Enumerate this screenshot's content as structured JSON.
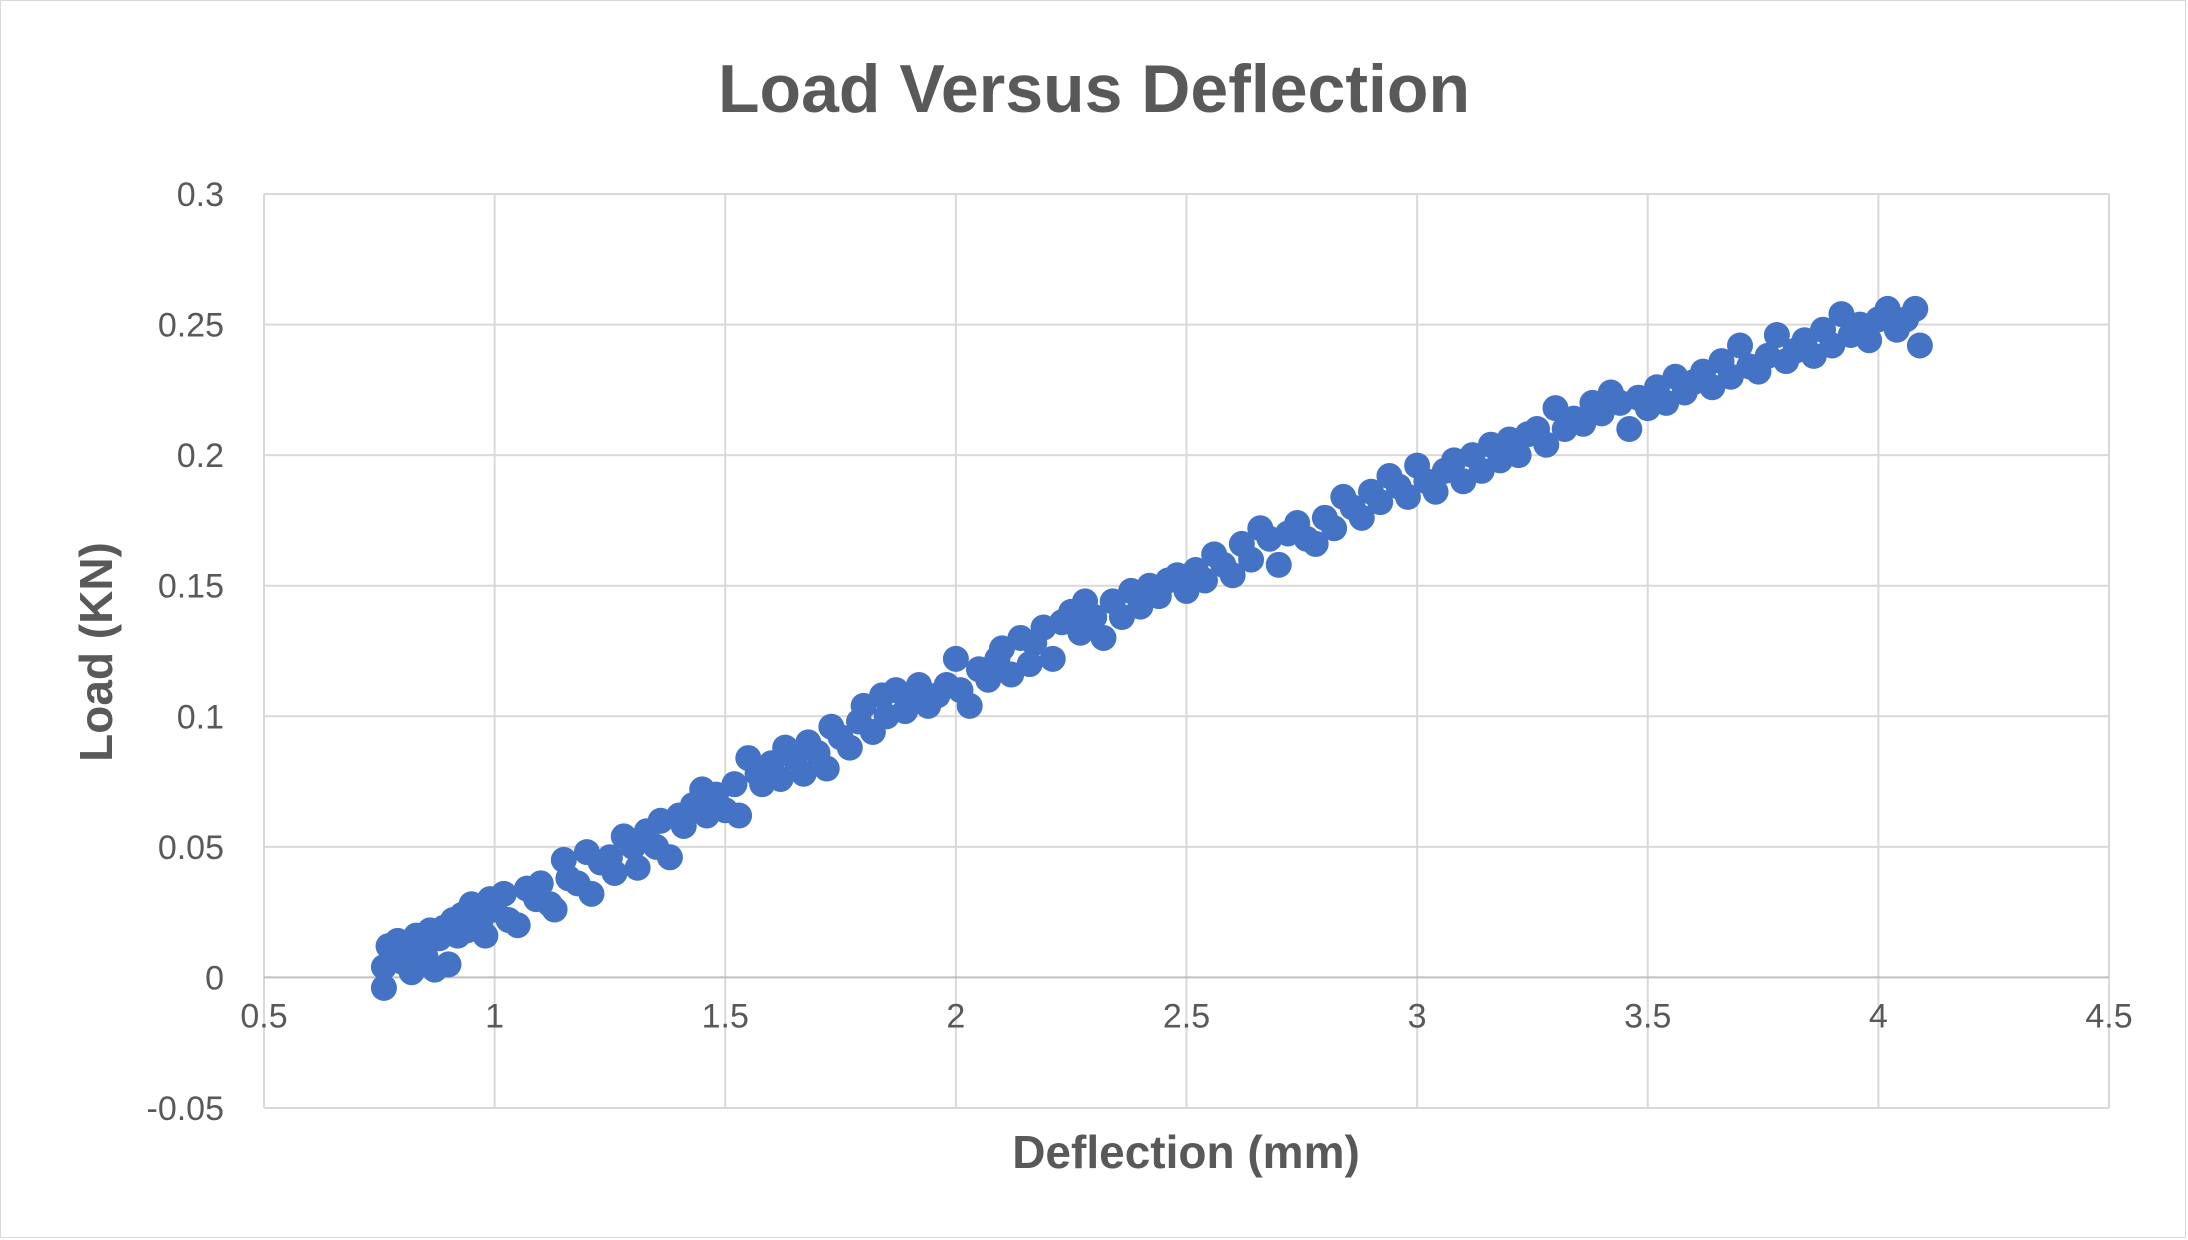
{
  "chart_data": {
    "type": "scatter",
    "title": "Load Versus Deflection",
    "xlabel": "Deflection (mm)",
    "ylabel": "Load (KN)",
    "xlim": [
      0.5,
      4.5
    ],
    "ylim": [
      -0.05,
      0.3
    ],
    "xticks": [
      0.5,
      1,
      1.5,
      2,
      2.5,
      3,
      3.5,
      4,
      4.5
    ],
    "yticks": [
      -0.05,
      0,
      0.05,
      0.1,
      0.15,
      0.2,
      0.25,
      0.3
    ],
    "xtick_labels": [
      "0.5",
      "1",
      "1.5",
      "2",
      "2.5",
      "3",
      "3.5",
      "4",
      "4.5"
    ],
    "ytick_labels": [
      "-0.05",
      "0",
      "0.05",
      "0.1",
      "0.15",
      "0.2",
      "0.25",
      "0.3"
    ],
    "grid": true,
    "legend": "none",
    "marker_color": "#4472c4",
    "series": [
      {
        "points": [
          [
            0.76,
            -0.004
          ],
          [
            0.76,
            0.004
          ],
          [
            0.77,
            0.012
          ],
          [
            0.78,
            0.008
          ],
          [
            0.79,
            0.014
          ],
          [
            0.8,
            0.006
          ],
          [
            0.81,
            0.01
          ],
          [
            0.82,
            0.002
          ],
          [
            0.83,
            0.016
          ],
          [
            0.84,
            0.012
          ],
          [
            0.85,
            0.008
          ],
          [
            0.86,
            0.018
          ],
          [
            0.87,
            0.003
          ],
          [
            0.88,
            0.015
          ],
          [
            0.89,
            0.019
          ],
          [
            0.9,
            0.005
          ],
          [
            0.91,
            0.022
          ],
          [
            0.92,
            0.016
          ],
          [
            0.93,
            0.024
          ],
          [
            0.94,
            0.018
          ],
          [
            0.95,
            0.028
          ],
          [
            0.96,
            0.02
          ],
          [
            0.97,
            0.022
          ],
          [
            0.98,
            0.016
          ],
          [
            0.99,
            0.03
          ],
          [
            1.0,
            0.026
          ],
          [
            1.02,
            0.032
          ],
          [
            1.03,
            0.022
          ],
          [
            1.05,
            0.02
          ],
          [
            1.07,
            0.034
          ],
          [
            1.09,
            0.03
          ],
          [
            1.1,
            0.036
          ],
          [
            1.12,
            0.028
          ],
          [
            1.13,
            0.026
          ],
          [
            1.15,
            0.045
          ],
          [
            1.16,
            0.038
          ],
          [
            1.18,
            0.036
          ],
          [
            1.2,
            0.048
          ],
          [
            1.21,
            0.032
          ],
          [
            1.23,
            0.044
          ],
          [
            1.25,
            0.046
          ],
          [
            1.26,
            0.04
          ],
          [
            1.28,
            0.054
          ],
          [
            1.3,
            0.05
          ],
          [
            1.31,
            0.042
          ],
          [
            1.33,
            0.056
          ],
          [
            1.35,
            0.05
          ],
          [
            1.36,
            0.06
          ],
          [
            1.38,
            0.046
          ],
          [
            1.4,
            0.062
          ],
          [
            1.41,
            0.058
          ],
          [
            1.43,
            0.066
          ],
          [
            1.45,
            0.072
          ],
          [
            1.46,
            0.062
          ],
          [
            1.48,
            0.07
          ],
          [
            1.5,
            0.064
          ],
          [
            1.52,
            0.074
          ],
          [
            1.53,
            0.062
          ],
          [
            1.55,
            0.084
          ],
          [
            1.57,
            0.078
          ],
          [
            1.58,
            0.074
          ],
          [
            1.6,
            0.082
          ],
          [
            1.62,
            0.076
          ],
          [
            1.63,
            0.088
          ],
          [
            1.65,
            0.084
          ],
          [
            1.67,
            0.078
          ],
          [
            1.68,
            0.09
          ],
          [
            1.7,
            0.086
          ],
          [
            1.72,
            0.08
          ],
          [
            1.73,
            0.096
          ],
          [
            1.75,
            0.092
          ],
          [
            1.77,
            0.088
          ],
          [
            1.79,
            0.098
          ],
          [
            1.8,
            0.104
          ],
          [
            1.82,
            0.094
          ],
          [
            1.84,
            0.108
          ],
          [
            1.85,
            0.1
          ],
          [
            1.87,
            0.11
          ],
          [
            1.89,
            0.102
          ],
          [
            1.9,
            0.106
          ],
          [
            1.92,
            0.112
          ],
          [
            1.94,
            0.104
          ],
          [
            1.96,
            0.108
          ],
          [
            1.98,
            0.112
          ],
          [
            2.0,
            0.122
          ],
          [
            2.01,
            0.11
          ],
          [
            2.03,
            0.104
          ],
          [
            2.05,
            0.118
          ],
          [
            2.07,
            0.114
          ],
          [
            2.09,
            0.122
          ],
          [
            2.1,
            0.126
          ],
          [
            2.12,
            0.116
          ],
          [
            2.14,
            0.13
          ],
          [
            2.16,
            0.12
          ],
          [
            2.17,
            0.128
          ],
          [
            2.19,
            0.134
          ],
          [
            2.21,
            0.122
          ],
          [
            2.23,
            0.136
          ],
          [
            2.25,
            0.14
          ],
          [
            2.27,
            0.132
          ],
          [
            2.28,
            0.144
          ],
          [
            2.3,
            0.138
          ],
          [
            2.32,
            0.13
          ],
          [
            2.34,
            0.144
          ],
          [
            2.36,
            0.138
          ],
          [
            2.38,
            0.148
          ],
          [
            2.4,
            0.142
          ],
          [
            2.42,
            0.15
          ],
          [
            2.44,
            0.146
          ],
          [
            2.46,
            0.152
          ],
          [
            2.48,
            0.154
          ],
          [
            2.5,
            0.148
          ],
          [
            2.52,
            0.156
          ],
          [
            2.54,
            0.152
          ],
          [
            2.56,
            0.162
          ],
          [
            2.58,
            0.158
          ],
          [
            2.6,
            0.154
          ],
          [
            2.62,
            0.166
          ],
          [
            2.64,
            0.16
          ],
          [
            2.66,
            0.172
          ],
          [
            2.68,
            0.168
          ],
          [
            2.7,
            0.158
          ],
          [
            2.72,
            0.17
          ],
          [
            2.74,
            0.174
          ],
          [
            2.76,
            0.168
          ],
          [
            2.78,
            0.166
          ],
          [
            2.8,
            0.176
          ],
          [
            2.82,
            0.172
          ],
          [
            2.84,
            0.184
          ],
          [
            2.86,
            0.18
          ],
          [
            2.88,
            0.176
          ],
          [
            2.9,
            0.186
          ],
          [
            2.92,
            0.182
          ],
          [
            2.94,
            0.192
          ],
          [
            2.96,
            0.188
          ],
          [
            2.98,
            0.184
          ],
          [
            3.0,
            0.196
          ],
          [
            3.02,
            0.19
          ],
          [
            3.04,
            0.186
          ],
          [
            3.06,
            0.194
          ],
          [
            3.08,
            0.198
          ],
          [
            3.1,
            0.19
          ],
          [
            3.12,
            0.2
          ],
          [
            3.14,
            0.194
          ],
          [
            3.16,
            0.204
          ],
          [
            3.18,
            0.198
          ],
          [
            3.2,
            0.206
          ],
          [
            3.22,
            0.2
          ],
          [
            3.24,
            0.208
          ],
          [
            3.26,
            0.21
          ],
          [
            3.28,
            0.204
          ],
          [
            3.3,
            0.218
          ],
          [
            3.32,
            0.21
          ],
          [
            3.34,
            0.214
          ],
          [
            3.36,
            0.212
          ],
          [
            3.38,
            0.22
          ],
          [
            3.4,
            0.216
          ],
          [
            3.42,
            0.224
          ],
          [
            3.44,
            0.22
          ],
          [
            3.46,
            0.21
          ],
          [
            3.48,
            0.222
          ],
          [
            3.5,
            0.218
          ],
          [
            3.52,
            0.226
          ],
          [
            3.54,
            0.22
          ],
          [
            3.56,
            0.23
          ],
          [
            3.58,
            0.224
          ],
          [
            3.6,
            0.228
          ],
          [
            3.62,
            0.232
          ],
          [
            3.64,
            0.226
          ],
          [
            3.66,
            0.236
          ],
          [
            3.68,
            0.23
          ],
          [
            3.7,
            0.242
          ],
          [
            3.72,
            0.234
          ],
          [
            3.74,
            0.232
          ],
          [
            3.76,
            0.238
          ],
          [
            3.78,
            0.246
          ],
          [
            3.8,
            0.236
          ],
          [
            3.82,
            0.24
          ],
          [
            3.84,
            0.244
          ],
          [
            3.86,
            0.238
          ],
          [
            3.88,
            0.248
          ],
          [
            3.9,
            0.242
          ],
          [
            3.92,
            0.254
          ],
          [
            3.94,
            0.246
          ],
          [
            3.96,
            0.25
          ],
          [
            3.98,
            0.244
          ],
          [
            4.0,
            0.252
          ],
          [
            4.02,
            0.256
          ],
          [
            4.04,
            0.248
          ],
          [
            4.06,
            0.252
          ],
          [
            4.08,
            0.256
          ],
          [
            4.09,
            0.242
          ]
        ]
      }
    ]
  }
}
